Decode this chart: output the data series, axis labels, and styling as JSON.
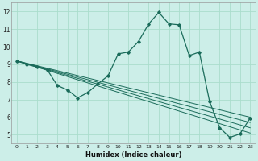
{
  "background_color": "#cceee8",
  "grid_color": "#aaddcc",
  "line_color": "#1a6b5a",
  "xlabel": "Humidex (Indice chaleur)",
  "xlim": [
    -0.5,
    23.5
  ],
  "ylim": [
    4.5,
    12.5
  ],
  "yticks": [
    5,
    6,
    7,
    8,
    9,
    10,
    11,
    12
  ],
  "xticks": [
    0,
    1,
    2,
    3,
    4,
    5,
    6,
    7,
    8,
    9,
    10,
    11,
    12,
    13,
    14,
    15,
    16,
    17,
    18,
    19,
    20,
    21,
    22,
    23
  ],
  "curve1_x": [
    0,
    1,
    2,
    3,
    4,
    5,
    6,
    7,
    8,
    9,
    10,
    11,
    12,
    13,
    14,
    15,
    16,
    17,
    18,
    19,
    20,
    21,
    22,
    23
  ],
  "curve1_y": [
    9.2,
    9.0,
    8.85,
    8.7,
    7.8,
    7.55,
    7.1,
    7.4,
    7.9,
    8.35,
    9.6,
    9.7,
    10.3,
    11.3,
    11.95,
    11.3,
    11.25,
    9.5,
    9.7,
    6.9,
    5.4,
    4.85,
    5.05,
    5.95
  ],
  "trend_lines": [
    {
      "x0": 0,
      "y0": 9.2,
      "x1": 23,
      "y1": 6.0
    },
    {
      "x0": 0,
      "y0": 9.2,
      "x1": 23,
      "y1": 5.7
    },
    {
      "x0": 0,
      "y0": 9.2,
      "x1": 23,
      "y1": 5.4
    },
    {
      "x0": 0,
      "y0": 9.2,
      "x1": 23,
      "y1": 5.1
    }
  ]
}
